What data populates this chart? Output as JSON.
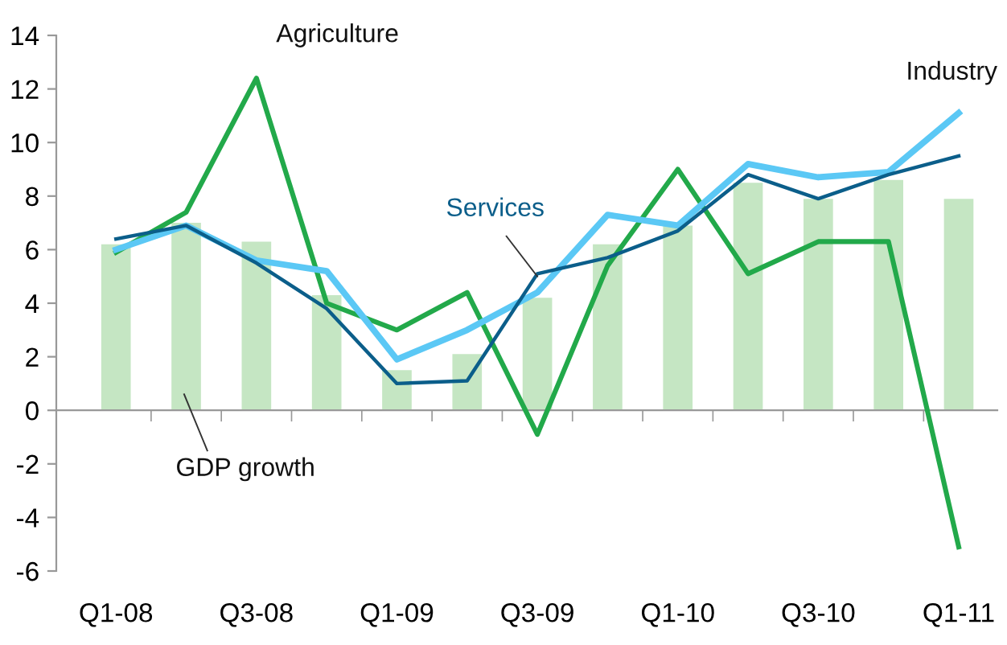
{
  "chart_data": {
    "type": "bar",
    "categories": [
      "Q1-08",
      null,
      "Q3-08",
      null,
      "Q1-09",
      null,
      "Q3-09",
      null,
      "Q1-10",
      null,
      "Q3-10",
      null,
      "Q1-11"
    ],
    "series": [
      {
        "name": "GDP growth",
        "color": "#c5e6c3",
        "values": [
          6.2,
          7.0,
          6.3,
          4.3,
          1.5,
          2.1,
          4.2,
          6.2,
          6.9,
          8.5,
          7.9,
          8.6,
          7.9
        ]
      },
      {
        "name": "Agriculture",
        "type": "line",
        "color": "#22a94a",
        "values": [
          5.9,
          7.4,
          12.4,
          4.0,
          3.0,
          4.4,
          -0.9,
          5.4,
          9.0,
          5.1,
          6.3,
          6.3,
          -5.1
        ]
      },
      {
        "name": "Industry",
        "type": "line",
        "color": "#5bc8f5",
        "values": [
          6.0,
          6.9,
          5.6,
          5.2,
          1.9,
          3.0,
          4.4,
          7.3,
          6.9,
          9.2,
          8.7,
          8.9,
          11.1
        ]
      },
      {
        "name": "Services",
        "type": "line",
        "color": "#0b5e8a",
        "values": [
          6.4,
          6.9,
          5.5,
          3.8,
          1.0,
          1.1,
          5.1,
          5.7,
          6.7,
          8.8,
          7.9,
          8.8,
          9.5
        ]
      }
    ],
    "ylim": [
      -6,
      14
    ],
    "yticks": [
      -6,
      -4,
      -2,
      0,
      2,
      4,
      6,
      8,
      10,
      12,
      14
    ],
    "legend": false,
    "marker": "none",
    "line_style": "solid"
  }
}
